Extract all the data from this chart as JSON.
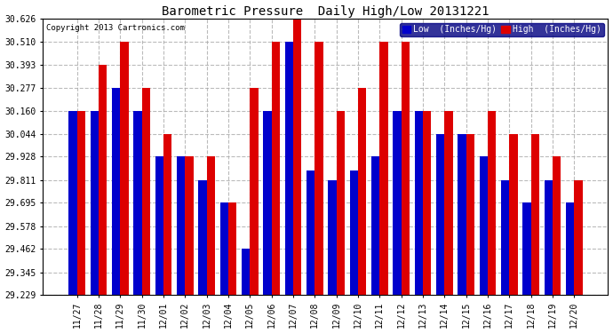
{
  "title": "Barometric Pressure  Daily High/Low 20131221",
  "copyright": "Copyright 2013 Cartronics.com",
  "legend_low": "Low  (Inches/Hg)",
  "legend_high": "High  (Inches/Hg)",
  "categories": [
    "11/27",
    "11/28",
    "11/29",
    "11/30",
    "12/01",
    "12/02",
    "12/03",
    "12/04",
    "12/05",
    "12/06",
    "12/07",
    "12/08",
    "12/09",
    "12/10",
    "12/11",
    "12/12",
    "12/13",
    "12/14",
    "12/15",
    "12/16",
    "12/17",
    "12/18",
    "12/19",
    "12/20"
  ],
  "low_values": [
    30.16,
    30.16,
    30.277,
    30.16,
    29.928,
    29.928,
    29.811,
    29.695,
    29.462,
    30.16,
    30.51,
    29.86,
    29.811,
    29.86,
    29.928,
    30.16,
    30.16,
    30.044,
    30.044,
    29.928,
    29.811,
    29.695,
    29.811,
    29.695
  ],
  "high_values": [
    30.16,
    30.393,
    30.51,
    30.277,
    30.044,
    29.928,
    29.928,
    29.695,
    30.277,
    30.51,
    30.626,
    30.51,
    30.16,
    30.277,
    30.51,
    30.51,
    30.16,
    30.16,
    30.044,
    30.16,
    30.044,
    30.044,
    29.928,
    29.811
  ],
  "color_low": "#0000cc",
  "color_high": "#dd0000",
  "ylim_min": 29.229,
  "ylim_max": 30.626,
  "yticks": [
    29.229,
    29.345,
    29.462,
    29.578,
    29.695,
    29.811,
    29.928,
    30.044,
    30.16,
    30.277,
    30.393,
    30.51,
    30.626
  ],
  "bg_color": "#ffffff",
  "grid_color": "#aaaaaa",
  "bar_width": 0.38
}
